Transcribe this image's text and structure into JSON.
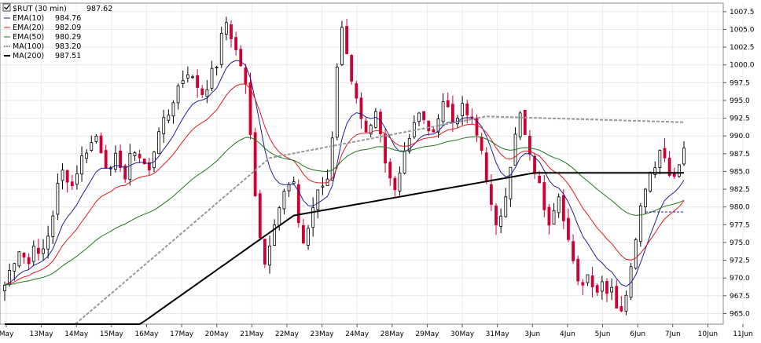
{
  "chart_data": {
    "type": "candlestick",
    "legend": {
      "symbol_label": "$RUT (30 min)",
      "symbol_value": "987.62",
      "entries": [
        {
          "name": "EMA(10)",
          "value": "984.76",
          "color": "#1f1f99",
          "style": "solid",
          "width": 1
        },
        {
          "name": "EMA(20)",
          "value": "982.09",
          "color": "#e01a1a",
          "style": "solid",
          "width": 1
        },
        {
          "name": "EMA(50)",
          "value": "980.29",
          "color": "#1a7a1a",
          "style": "solid",
          "width": 1
        },
        {
          "name": "MA(100)",
          "value": "983.20",
          "color": "#999999",
          "style": "dashed",
          "width": 2
        },
        {
          "name": "MA(200)",
          "value": "987.51",
          "color": "#000000",
          "style": "solid",
          "width": 2
        }
      ]
    },
    "x_labels": [
      "May",
      "13May",
      "14May",
      "15May",
      "16May",
      "17May",
      "20May",
      "21May",
      "22May",
      "23May",
      "24May",
      "28May",
      "29May",
      "30May",
      "31May",
      "3Jun",
      "4Jun",
      "5Jun",
      "6Jun",
      "7Jun",
      "10Jun",
      "11Jun"
    ],
    "y_ticks": [
      "965.0",
      "967.5",
      "970.0",
      "972.5",
      "975.0",
      "977.5",
      "980.0",
      "982.5",
      "985.0",
      "987.5",
      "990.0",
      "992.5",
      "995.0",
      "997.5",
      "1000.0",
      "1002.5",
      "1005.0",
      "1007.5"
    ],
    "ylim": [
      963.5,
      1008.7
    ],
    "price_points": [
      [
        0,
        969
      ],
      [
        1,
        971
      ],
      [
        2,
        972.5
      ],
      [
        3,
        974
      ],
      [
        4,
        973
      ],
      [
        5,
        972
      ],
      [
        6,
        975
      ],
      [
        7,
        973
      ],
      [
        8,
        974
      ],
      [
        9,
        976
      ],
      [
        10,
        979
      ],
      [
        11,
        983
      ],
      [
        12,
        985
      ],
      [
        13,
        984
      ],
      [
        14,
        983
      ],
      [
        15,
        985
      ],
      [
        16,
        987
      ],
      [
        17,
        988
      ],
      [
        18,
        989
      ],
      [
        19,
        990
      ],
      [
        20,
        988
      ],
      [
        21,
        986
      ],
      [
        22,
        985
      ],
      [
        23,
        987
      ],
      [
        24,
        986
      ],
      [
        25,
        984
      ],
      [
        26,
        987
      ],
      [
        27,
        988
      ],
      [
        28,
        987
      ],
      [
        29,
        986
      ],
      [
        30,
        985
      ],
      [
        31,
        988
      ],
      [
        32,
        991
      ],
      [
        33,
        992
      ],
      [
        34,
        993
      ],
      [
        35,
        995
      ],
      [
        36,
        997
      ],
      [
        37,
        998
      ],
      [
        38,
        999
      ],
      [
        39,
        998
      ],
      [
        40,
        997
      ],
      [
        41,
        996
      ],
      [
        42,
        997
      ],
      [
        43,
        999
      ],
      [
        44,
        1000
      ],
      [
        45,
        1004
      ],
      [
        46,
        1006
      ],
      [
        47,
        1004
      ],
      [
        48,
        1002
      ],
      [
        49,
        1000
      ],
      [
        50,
        997
      ],
      [
        51,
        990
      ],
      [
        52,
        982
      ],
      [
        53,
        976
      ],
      [
        54,
        972
      ],
      [
        55,
        975
      ],
      [
        56,
        978
      ],
      [
        57,
        980
      ],
      [
        58,
        982
      ],
      [
        59,
        983
      ],
      [
        60,
        983
      ],
      [
        61,
        978
      ],
      [
        62,
        975
      ],
      [
        63,
        977
      ],
      [
        64,
        980
      ],
      [
        65,
        982
      ],
      [
        66,
        983
      ],
      [
        67,
        984
      ],
      [
        68,
        990
      ],
      [
        69,
        1000
      ],
      [
        70,
        1005
      ],
      [
        71,
        1002
      ],
      [
        72,
        998
      ],
      [
        73,
        995
      ],
      [
        74,
        992
      ],
      [
        75,
        990
      ],
      [
        76,
        991
      ],
      [
        77,
        993
      ],
      [
        78,
        990
      ],
      [
        79,
        986
      ],
      [
        80,
        984
      ],
      [
        81,
        983
      ],
      [
        82,
        985
      ],
      [
        83,
        988
      ],
      [
        84,
        990
      ],
      [
        85,
        992
      ],
      [
        86,
        993
      ],
      [
        87,
        992
      ],
      [
        88,
        991
      ],
      [
        89,
        990
      ],
      [
        90,
        993
      ],
      [
        91,
        995
      ],
      [
        92,
        994
      ],
      [
        93,
        992
      ],
      [
        94,
        993
      ],
      [
        95,
        994
      ],
      [
        96,
        993
      ],
      [
        97,
        992
      ],
      [
        98,
        990
      ],
      [
        99,
        988
      ],
      [
        100,
        984
      ],
      [
        101,
        980
      ],
      [
        102,
        977
      ],
      [
        103,
        979
      ],
      [
        104,
        982
      ],
      [
        105,
        986
      ],
      [
        106,
        990
      ],
      [
        107,
        993
      ],
      [
        108,
        990
      ],
      [
        109,
        987
      ],
      [
        110,
        985
      ],
      [
        111,
        983
      ],
      [
        112,
        980
      ],
      [
        113,
        978
      ],
      [
        114,
        980
      ],
      [
        115,
        982
      ],
      [
        116,
        978
      ],
      [
        117,
        975
      ],
      [
        118,
        972
      ],
      [
        119,
        970
      ],
      [
        120,
        969
      ],
      [
        121,
        971
      ],
      [
        122,
        969
      ],
      [
        123,
        968
      ],
      [
        124,
        970
      ],
      [
        125,
        968
      ],
      [
        126,
        969
      ],
      [
        127,
        966
      ],
      [
        128,
        965
      ],
      [
        129,
        968
      ],
      [
        130,
        972
      ],
      [
        131,
        976
      ],
      [
        132,
        980
      ],
      [
        133,
        983
      ],
      [
        134,
        985
      ],
      [
        135,
        986
      ],
      [
        136,
        988
      ],
      [
        137,
        987
      ],
      [
        138,
        985
      ],
      [
        139,
        984
      ],
      [
        140,
        986
      ],
      [
        141,
        988
      ]
    ],
    "ref_line": {
      "value": 979.3,
      "style": "dashed",
      "color": "#1f1f99"
    }
  }
}
